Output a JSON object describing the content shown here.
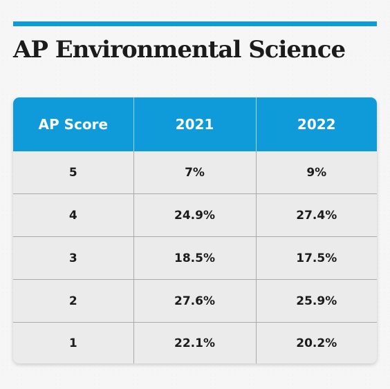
{
  "title": "AP Environmental Science",
  "colors": {
    "accent": "#0f9ad9",
    "card_background": "#ebebec",
    "page_background": "#f6f6f7",
    "text": "#1b1b1b"
  },
  "chart_data": {
    "type": "table",
    "title": "AP Environmental Science",
    "columns": [
      "AP Score",
      "2021",
      "2022"
    ],
    "rows": [
      [
        "5",
        "7%",
        "9%"
      ],
      [
        "4",
        "24.9%",
        "27.4%"
      ],
      [
        "3",
        "18.5%",
        "17.5%"
      ],
      [
        "2",
        "27.6%",
        "25.9%"
      ],
      [
        "1",
        "22.1%",
        "20.2%"
      ]
    ]
  }
}
